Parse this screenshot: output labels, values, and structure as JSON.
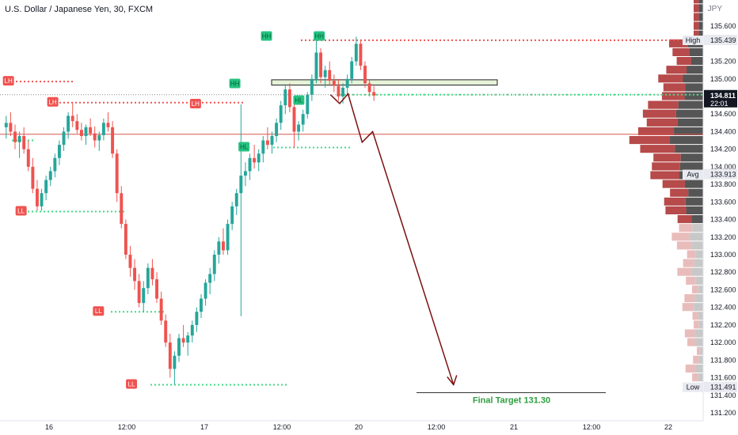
{
  "header": {
    "symbol": "U.S. Dollar / Japanese Yen, 30, FXCM",
    "currency": "JPY"
  },
  "colors": {
    "bull": "#26a69a",
    "bear": "#ef5350",
    "resistance": "#e06666",
    "projection": "#7b1010",
    "target": "#2e9e3e",
    "support_dots": "#3ddc84"
  },
  "chart_data": {
    "type": "candlestick",
    "ylim": [
      131.2,
      135.7
    ],
    "y_ticks": [
      "135.600",
      "135.200",
      "135.000",
      "134.600",
      "134.400",
      "134.200",
      "134.000",
      "133.800",
      "133.600",
      "133.400",
      "133.200",
      "133.000",
      "132.800",
      "132.600",
      "132.400",
      "132.200",
      "132.000",
      "131.800",
      "131.600",
      "131.400",
      "131.200"
    ],
    "x_ticks": [
      "16",
      "12:00",
      "17",
      "12:00",
      "20",
      "12:00",
      "21",
      "12:00",
      "22"
    ],
    "price_badges": [
      {
        "label": "High",
        "value": "135.439"
      },
      {
        "label": "",
        "value": "134.811",
        "sub": "22:01"
      },
      {
        "label": "Avg",
        "value": "133.913"
      },
      {
        "label": "Low",
        "value": "131.491"
      }
    ],
    "pivot_labels": [
      {
        "text": "LH",
        "price": 134.97,
        "t": 0.012
      },
      {
        "text": "LH",
        "price": 134.73,
        "t": 0.075
      },
      {
        "text": "LL",
        "price": 133.49,
        "t": 0.03
      },
      {
        "text": "LL",
        "price": 132.35,
        "t": 0.14
      },
      {
        "text": "LL",
        "price": 131.52,
        "t": 0.187
      },
      {
        "text": "LH",
        "price": 134.71,
        "t": 0.278
      },
      {
        "text": "HH",
        "price": 134.94,
        "t": 0.334
      },
      {
        "text": "HL",
        "price": 134.22,
        "t": 0.347
      },
      {
        "text": "HH",
        "price": 135.48,
        "t": 0.379
      },
      {
        "text": "HL",
        "price": 134.75,
        "t": 0.425
      },
      {
        "text": "HH",
        "price": 135.48,
        "t": 0.454
      }
    ],
    "levels": [
      {
        "price": 134.82,
        "style": "dotted-black"
      },
      {
        "price": 134.37,
        "style": "solid-red"
      }
    ],
    "projection_path": [
      {
        "t": 0.47,
        "price": 134.82
      },
      {
        "t": 0.483,
        "price": 134.72
      },
      {
        "t": 0.495,
        "price": 134.83
      },
      {
        "t": 0.515,
        "price": 134.28
      },
      {
        "t": 0.53,
        "price": 134.4
      },
      {
        "t": 0.645,
        "price": 131.52
      }
    ],
    "target_label": "Final Target 131.30",
    "target_price": 131.3,
    "candles": [
      [
        134.45,
        134.58,
        134.32,
        134.5
      ],
      [
        134.5,
        134.62,
        134.35,
        134.4
      ],
      [
        134.4,
        134.48,
        134.2,
        134.28
      ],
      [
        134.28,
        134.4,
        134.1,
        134.35
      ],
      [
        134.35,
        134.45,
        134.15,
        134.2
      ],
      [
        134.2,
        134.3,
        133.95,
        134.0
      ],
      [
        134.0,
        134.1,
        133.7,
        133.75
      ],
      [
        133.75,
        133.85,
        133.5,
        133.55
      ],
      [
        133.55,
        133.75,
        133.5,
        133.7
      ],
      [
        133.7,
        133.9,
        133.62,
        133.85
      ],
      [
        133.85,
        134.0,
        133.78,
        133.95
      ],
      [
        133.95,
        134.15,
        133.88,
        134.1
      ],
      [
        134.1,
        134.3,
        134.02,
        134.25
      ],
      [
        134.25,
        134.45,
        134.18,
        134.4
      ],
      [
        134.4,
        134.62,
        134.32,
        134.58
      ],
      [
        134.58,
        134.73,
        134.45,
        134.52
      ],
      [
        134.52,
        134.6,
        134.38,
        134.42
      ],
      [
        134.42,
        134.5,
        134.3,
        134.35
      ],
      [
        134.35,
        134.48,
        134.25,
        134.45
      ],
      [
        134.45,
        134.55,
        134.35,
        134.38
      ],
      [
        134.38,
        134.46,
        134.22,
        134.3
      ],
      [
        134.3,
        134.4,
        134.18,
        134.36
      ],
      [
        134.36,
        134.55,
        134.3,
        134.5
      ],
      [
        134.5,
        134.62,
        134.4,
        134.45
      ],
      [
        134.45,
        134.52,
        134.1,
        134.15
      ],
      [
        134.15,
        134.2,
        133.6,
        133.7
      ],
      [
        133.7,
        133.78,
        133.3,
        133.35
      ],
      [
        133.35,
        133.4,
        132.95,
        133.0
      ],
      [
        133.0,
        133.1,
        132.75,
        132.85
      ],
      [
        132.85,
        132.95,
        132.6,
        132.7
      ],
      [
        132.7,
        132.78,
        132.4,
        132.45
      ],
      [
        132.45,
        132.7,
        132.35,
        132.62
      ],
      [
        132.62,
        132.9,
        132.55,
        132.85
      ],
      [
        132.85,
        132.95,
        132.65,
        132.72
      ],
      [
        132.72,
        132.8,
        132.45,
        132.5
      ],
      [
        132.5,
        132.58,
        132.2,
        132.25
      ],
      [
        132.25,
        132.32,
        131.95,
        132.0
      ],
      [
        132.0,
        132.1,
        131.6,
        131.7
      ],
      [
        131.7,
        131.9,
        131.52,
        131.85
      ],
      [
        131.85,
        132.1,
        131.78,
        132.05
      ],
      [
        132.05,
        132.2,
        131.95,
        132.0
      ],
      [
        132.0,
        132.12,
        131.85,
        132.08
      ],
      [
        132.08,
        132.25,
        132.0,
        132.2
      ],
      [
        132.2,
        132.4,
        132.12,
        132.35
      ],
      [
        132.35,
        132.55,
        132.28,
        132.5
      ],
      [
        132.5,
        132.72,
        132.42,
        132.68
      ],
      [
        132.68,
        132.85,
        132.55,
        132.78
      ],
      [
        132.78,
        133.05,
        132.7,
        133.0
      ],
      [
        133.0,
        133.2,
        132.9,
        133.15
      ],
      [
        133.15,
        133.3,
        133.0,
        133.05
      ],
      [
        133.05,
        133.4,
        133.0,
        133.35
      ],
      [
        133.35,
        133.6,
        133.28,
        133.55
      ],
      [
        133.55,
        133.75,
        133.45,
        133.7
      ],
      [
        133.7,
        134.71,
        132.3,
        133.9
      ],
      [
        133.9,
        134.05,
        133.78,
        133.95
      ],
      [
        133.95,
        134.15,
        133.85,
        134.1
      ],
      [
        134.1,
        134.25,
        133.98,
        134.05
      ],
      [
        134.05,
        134.2,
        133.95,
        134.15
      ],
      [
        134.15,
        134.35,
        134.05,
        134.3
      ],
      [
        134.3,
        134.45,
        134.2,
        134.25
      ],
      [
        134.25,
        134.4,
        134.15,
        134.35
      ],
      [
        134.35,
        134.55,
        134.28,
        134.5
      ],
      [
        134.5,
        134.75,
        134.42,
        134.7
      ],
      [
        134.7,
        134.94,
        134.6,
        134.88
      ],
      [
        134.88,
        134.95,
        134.62,
        134.68
      ],
      [
        134.68,
        134.75,
        134.22,
        134.4
      ],
      [
        134.4,
        134.52,
        134.3,
        134.48
      ],
      [
        134.48,
        134.65,
        134.4,
        134.6
      ],
      [
        134.6,
        134.85,
        134.55,
        134.82
      ],
      [
        134.82,
        135.05,
        134.75,
        135.0
      ],
      [
        135.0,
        135.48,
        134.95,
        135.3
      ],
      [
        135.3,
        135.35,
        134.95,
        135.02
      ],
      [
        135.02,
        135.15,
        134.9,
        135.1
      ],
      [
        135.1,
        135.2,
        134.92,
        134.98
      ],
      [
        134.98,
        135.05,
        134.85,
        134.92
      ],
      [
        134.92,
        135.0,
        134.75,
        134.8
      ],
      [
        134.8,
        134.95,
        134.72,
        134.9
      ],
      [
        134.9,
        135.05,
        134.82,
        135.0
      ],
      [
        135.0,
        135.25,
        134.95,
        135.2
      ],
      [
        135.2,
        135.48,
        135.15,
        135.4
      ],
      [
        135.4,
        135.45,
        135.1,
        135.15
      ],
      [
        135.15,
        135.2,
        134.9,
        134.95
      ],
      [
        134.95,
        135.0,
        134.8,
        134.85
      ],
      [
        134.85,
        134.92,
        134.75,
        134.81
      ]
    ]
  }
}
